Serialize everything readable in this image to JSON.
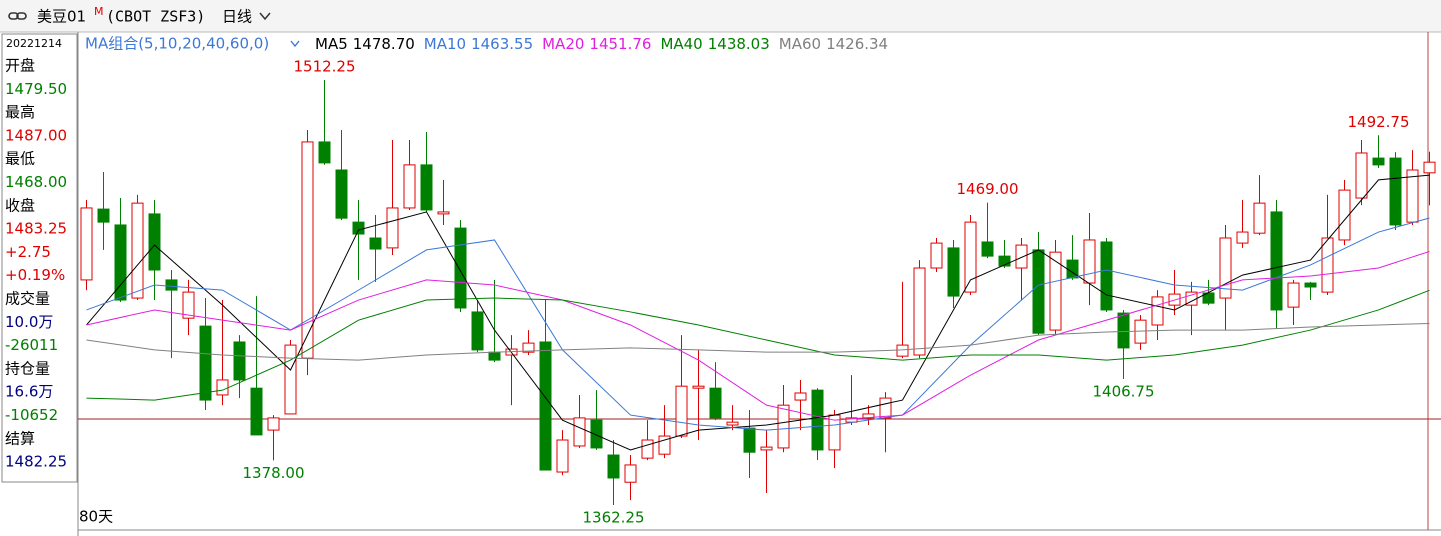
{
  "chart_data": {
    "type": "candlestick",
    "header": {
      "symbol": "美豆01",
      "mark": "M",
      "code": "(CBOT ZSF3)",
      "period": "日线"
    },
    "ma_group": "MA组合(5,10,20,40,60,0)",
    "period_count": "80天",
    "up_color": "#e00000",
    "down_color": "#008000",
    "ylim": [
      1360.5,
      1529.2
    ],
    "info_panel": {
      "date": "20221214",
      "items": [
        {
          "text": "开盘",
          "color": "#000"
        },
        {
          "text": "1479.50",
          "color": "#008000"
        },
        {
          "text": "最高",
          "color": "#000"
        },
        {
          "text": "1487.00",
          "color": "#e00000"
        },
        {
          "text": "最低",
          "color": "#000"
        },
        {
          "text": "1468.00",
          "color": "#008000"
        },
        {
          "text": "收盘",
          "color": "#000"
        },
        {
          "text": "1483.25",
          "color": "#e00000"
        },
        {
          "text": "+2.75",
          "color": "#e00000"
        },
        {
          "text": "+0.19%",
          "color": "#e00000"
        },
        {
          "text": "成交量",
          "color": "#000"
        },
        {
          "text": "10.0万",
          "color": "#000080"
        },
        {
          "text": "-26011",
          "color": "#008000"
        },
        {
          "text": "持仓量",
          "color": "#000"
        },
        {
          "text": "16.6万",
          "color": "#000080"
        },
        {
          "text": "-10652",
          "color": "#008000"
        },
        {
          "text": "结算",
          "color": "#000"
        },
        {
          "text": "1482.25",
          "color": "#000080"
        }
      ]
    },
    "candles": {
      "open": [
        1441.7,
        1466.7,
        1461.1,
        1435.3,
        1465.0,
        1441.7,
        1428.2,
        1425.4,
        1401.1,
        1419.8,
        1403.5,
        1388.7,
        1394.4,
        1414.1,
        1490.4,
        1480.5,
        1462.1,
        1456.5,
        1453.0,
        1467.1,
        1482.3,
        1465.0,
        1460.0,
        1430.4,
        1416.2,
        1415.2,
        1416.2,
        1419.8,
        1373.9,
        1383.1,
        1392.2,
        1379.9,
        1370.3,
        1378.8,
        1380.2,
        1386.6,
        1403.5,
        1403.5,
        1390.5,
        1389.4,
        1381.7,
        1382.4,
        1399.3,
        1402.8,
        1381.7,
        1391.5,
        1393.0,
        1393.0,
        1414.8,
        1415.2,
        1445.9,
        1453.0,
        1437.4,
        1455.1,
        1450.1,
        1445.9,
        1452.3,
        1424.0,
        1448.7,
        1440.6,
        1455.1,
        1430.0,
        1419.4,
        1425.8,
        1432.8,
        1432.8,
        1437.1,
        1435.3,
        1454.7,
        1458.2,
        1465.7,
        1432.1,
        1440.6,
        1437.4,
        1455.8,
        1470.6,
        1484.7,
        1484.7,
        1462.1,
        1479.5
      ],
      "high": [
        1469.9,
        1479.8,
        1470.6,
        1471.7,
        1469.9,
        1445.2,
        1441.7,
        1435.3,
        1434.6,
        1422.2,
        1436.0,
        1394.0,
        1420.5,
        1494.6,
        1512.25,
        1494.6,
        1469.9,
        1464.6,
        1491.1,
        1491.1,
        1493.9,
        1477.0,
        1462.8,
        1434.6,
        1441.7,
        1422.2,
        1424.0,
        1434.6,
        1388.7,
        1401.1,
        1402.8,
        1385.2,
        1379.9,
        1392.2,
        1397.5,
        1422.2,
        1417.0,
        1412.7,
        1397.5,
        1395.8,
        1388.7,
        1404.6,
        1406.4,
        1403.5,
        1395.8,
        1408.1,
        1397.5,
        1402.1,
        1441.0,
        1448.7,
        1456.5,
        1455.8,
        1464.6,
        1469.0,
        1455.8,
        1456.5,
        1458.6,
        1455.8,
        1457.5,
        1465.3,
        1456.5,
        1431.1,
        1429.3,
        1438.1,
        1445.2,
        1441.0,
        1441.7,
        1461.1,
        1469.9,
        1478.7,
        1469.9,
        1441.7,
        1441.0,
        1471.7,
        1477.0,
        1491.1,
        1492.75,
        1486.8,
        1487.5,
        1487.0
      ],
      "low": [
        1438.1,
        1452.3,
        1433.9,
        1434.6,
        1434.6,
        1414.1,
        1422.2,
        1395.8,
        1397.5,
        1400.0,
        1387.0,
        1378.0,
        1394.4,
        1408.1,
        1482.3,
        1462.8,
        1441.7,
        1441.0,
        1450.5,
        1466.4,
        1465.7,
        1461.1,
        1430.4,
        1416.2,
        1412.7,
        1397.5,
        1415.2,
        1374.6,
        1372.8,
        1382.4,
        1381.7,
        1362.25,
        1364.0,
        1378.1,
        1378.8,
        1385.9,
        1385.2,
        1392.2,
        1388.7,
        1371.8,
        1366.5,
        1380.9,
        1388.7,
        1378.1,
        1375.3,
        1390.5,
        1390.5,
        1380.9,
        1414.1,
        1414.1,
        1444.5,
        1431.8,
        1436.4,
        1449.4,
        1445.9,
        1434.6,
        1422.2,
        1422.2,
        1441.7,
        1432.8,
        1430.4,
        1406.75,
        1417.0,
        1420.5,
        1429.3,
        1422.2,
        1432.8,
        1424.0,
        1453.0,
        1457.5,
        1424.7,
        1425.8,
        1434.6,
        1436.4,
        1454.0,
        1468.1,
        1481.2,
        1459.3,
        1461.1,
        1468.0
      ],
      "close": [
        1467.1,
        1462.1,
        1434.6,
        1468.8,
        1445.2,
        1438.1,
        1437.4,
        1399.3,
        1406.4,
        1406.4,
        1387.0,
        1393.0,
        1418.7,
        1490.4,
        1483.0,
        1463.5,
        1457.9,
        1452.6,
        1467.1,
        1482.3,
        1466.4,
        1465.7,
        1431.8,
        1417.0,
        1413.4,
        1417.3,
        1419.4,
        1374.6,
        1385.2,
        1393.0,
        1382.4,
        1371.8,
        1376.4,
        1385.2,
        1386.6,
        1404.2,
        1404.2,
        1393.0,
        1391.5,
        1380.9,
        1382.7,
        1397.5,
        1401.8,
        1381.7,
        1394.0,
        1393.0,
        1394.4,
        1400.0,
        1418.7,
        1445.9,
        1454.7,
        1436.0,
        1462.1,
        1450.1,
        1446.6,
        1454.0,
        1422.9,
        1451.5,
        1442.4,
        1455.8,
        1431.1,
        1417.7,
        1427.5,
        1435.7,
        1436.7,
        1437.4,
        1433.5,
        1456.5,
        1458.6,
        1468.8,
        1431.1,
        1440.6,
        1439.2,
        1456.5,
        1473.4,
        1486.5,
        1482.3,
        1461.1,
        1480.5,
        1483.25
      ],
      "high_labels": [
        null,
        null,
        null,
        null,
        null,
        null,
        null,
        null,
        null,
        null,
        null,
        null,
        null,
        null,
        "1512.25",
        null,
        null,
        null,
        null,
        null,
        null,
        null,
        null,
        null,
        null,
        null,
        null,
        null,
        null,
        null,
        null,
        null,
        null,
        null,
        null,
        null,
        null,
        null,
        null,
        null,
        null,
        null,
        null,
        null,
        null,
        null,
        null,
        null,
        null,
        null,
        null,
        null,
        null,
        "1469.00",
        null,
        null,
        null,
        null,
        null,
        null,
        null,
        null,
        null,
        null,
        null,
        null,
        null,
        null,
        null,
        null,
        null,
        null,
        null,
        null,
        null,
        null,
        "1492.75",
        null,
        null,
        null
      ],
      "low_labels": [
        null,
        null,
        null,
        null,
        null,
        null,
        null,
        null,
        null,
        null,
        null,
        "1378.00",
        null,
        null,
        null,
        null,
        null,
        null,
        null,
        null,
        null,
        null,
        null,
        null,
        null,
        null,
        null,
        null,
        null,
        null,
        null,
        "1362.25",
        null,
        null,
        null,
        null,
        null,
        null,
        null,
        null,
        null,
        null,
        null,
        null,
        null,
        null,
        null,
        null,
        null,
        null,
        null,
        null,
        null,
        null,
        null,
        null,
        null,
        null,
        null,
        null,
        null,
        "1406.75",
        null,
        null,
        null,
        null,
        null,
        null,
        null,
        null,
        null,
        null,
        null,
        null,
        null,
        null,
        null,
        null,
        null,
        null
      ]
    },
    "series": [
      {
        "name": "MA5",
        "color": "#000000",
        "value_label": "1478.70",
        "x": [
          0,
          4,
          8,
          12,
          16,
          20,
          24,
          28,
          32,
          36,
          40,
          44,
          48,
          52,
          56,
          60,
          64,
          68,
          72,
          76,
          79
        ],
        "values": [
          1425.8,
          1454.0,
          1432.8,
          1409.9,
          1459.3,
          1465.7,
          1424.0,
          1392.2,
          1381.7,
          1388.7,
          1390.5,
          1394.0,
          1399.3,
          1441.7,
          1452.3,
          1436.4,
          1431.1,
          1443.4,
          1448.7,
          1477.0,
          1478.7
        ]
      },
      {
        "name": "MA10",
        "color": "#3c78d8",
        "value_label": "1463.55",
        "x": [
          0,
          4,
          8,
          12,
          16,
          20,
          24,
          28,
          32,
          36,
          40,
          44,
          48,
          52,
          56,
          60,
          64,
          68,
          72,
          76,
          79
        ],
        "values": [
          1431.1,
          1439.9,
          1438.1,
          1424.0,
          1438.1,
          1452.3,
          1455.8,
          1417.0,
          1394.0,
          1390.5,
          1388.7,
          1390.5,
          1394.0,
          1418.7,
          1439.9,
          1445.2,
          1439.9,
          1438.1,
          1447.0,
          1458.6,
          1463.55
        ]
      },
      {
        "name": "MA20",
        "color": "#e020e0",
        "value_label": "1451.76",
        "x": [
          0,
          4,
          8,
          12,
          16,
          20,
          24,
          28,
          32,
          36,
          40,
          44,
          48,
          52,
          56,
          60,
          64,
          68,
          72,
          76,
          79
        ],
        "values": [
          1425.8,
          1431.1,
          1427.5,
          1424.0,
          1434.6,
          1441.7,
          1439.9,
          1434.6,
          1425.8,
          1413.4,
          1397.5,
          1392.2,
          1394.0,
          1408.1,
          1420.5,
          1427.5,
          1434.6,
          1441.7,
          1443.1,
          1445.9,
          1451.76
        ]
      },
      {
        "name": "MA40",
        "color": "#008000",
        "value_label": "1438.03",
        "x": [
          0,
          4,
          8,
          12,
          16,
          20,
          24,
          28,
          32,
          36,
          40,
          44,
          48,
          52,
          56,
          60,
          64,
          68,
          72,
          76,
          79
        ],
        "values": [
          1400.0,
          1399.3,
          1402.8,
          1413.4,
          1427.5,
          1434.6,
          1435.3,
          1434.6,
          1430.4,
          1425.8,
          1420.5,
          1415.2,
          1413.4,
          1415.2,
          1415.2,
          1413.4,
          1415.2,
          1418.7,
          1424.0,
          1431.1,
          1438.03
        ]
      },
      {
        "name": "MA60",
        "color": "#808080",
        "value_label": "1426.34",
        "x": [
          0,
          4,
          8,
          12,
          16,
          20,
          24,
          28,
          32,
          36,
          40,
          44,
          48,
          52,
          56,
          60,
          64,
          68,
          72,
          76,
          79
        ],
        "values": [
          1420.5,
          1417.0,
          1415.2,
          1414.1,
          1413.4,
          1415.2,
          1416.2,
          1417.0,
          1417.7,
          1417.0,
          1416.2,
          1416.2,
          1417.0,
          1418.7,
          1422.2,
          1423.3,
          1424.0,
          1424.0,
          1425.1,
          1425.8,
          1426.34
        ]
      }
    ]
  }
}
